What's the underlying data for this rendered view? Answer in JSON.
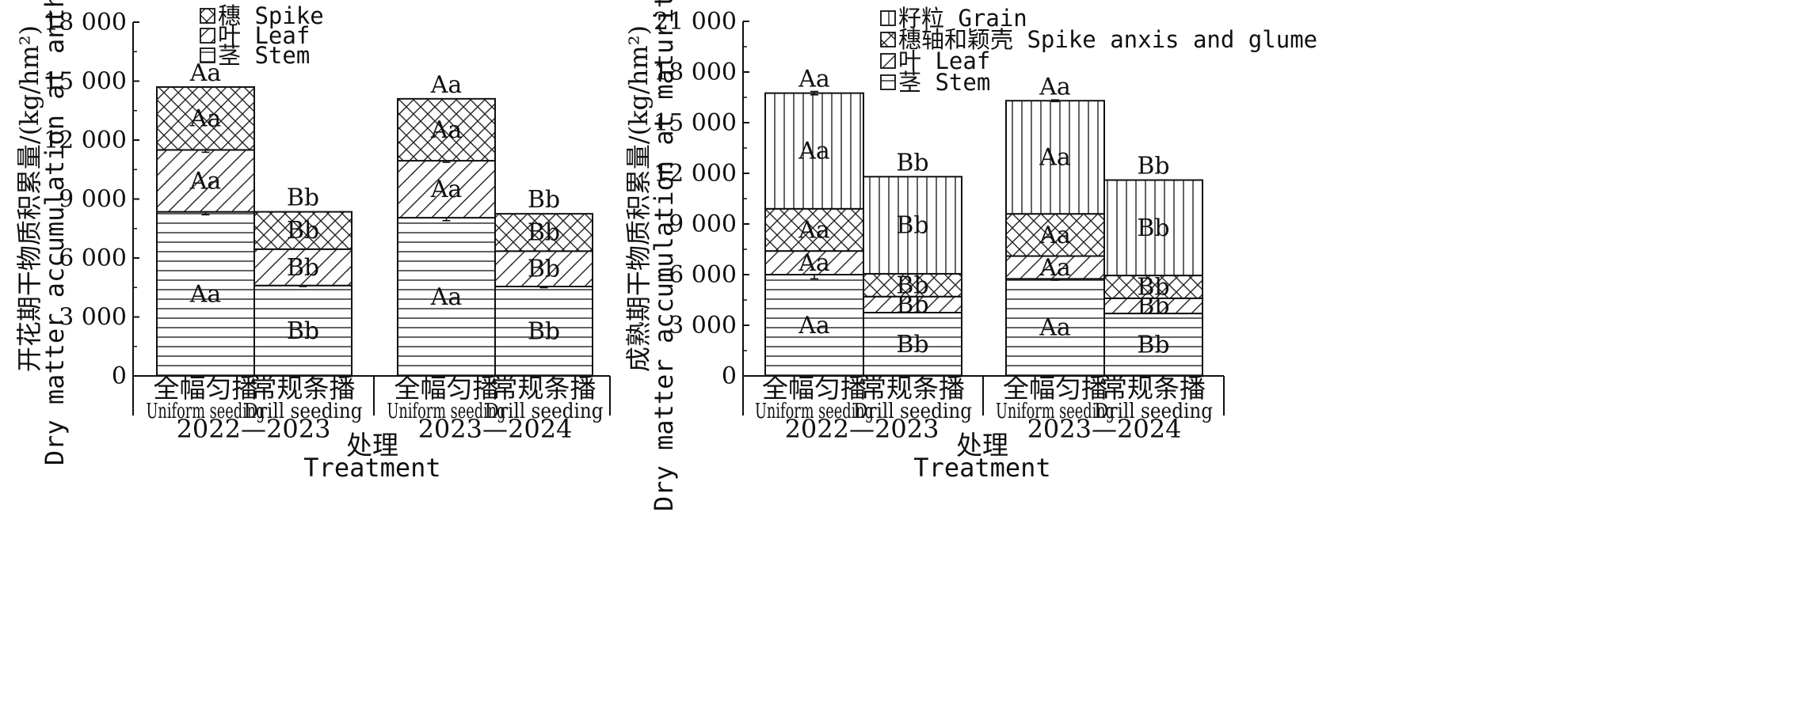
{
  "chart_data": [
    {
      "type": "bar",
      "stacked": true,
      "ylabel": "开花期干物质积累量/(kg/hm²)",
      "ylabel_en": "Dry matter accumulation at anthesis",
      "xlabel": "处理",
      "xlabel_en": "Treatment",
      "ylim": [
        0,
        18000
      ],
      "yticks": [
        0,
        3000,
        6000,
        9000,
        12000,
        15000,
        18000
      ],
      "ytick_labels": [
        "0",
        "3 000",
        "6 000",
        "9 000",
        "12 000",
        "15 000",
        "18 000"
      ],
      "legend_position": "top",
      "categories": [
        {
          "zh": "全幅匀播",
          "en": "Uniform seeding",
          "year": "2022—2023"
        },
        {
          "zh": "常规条播",
          "en": "Drill seeding",
          "year": "2022—2023"
        },
        {
          "zh": "全幅匀播",
          "en": "Uniform seeding",
          "year": "2023—2024"
        },
        {
          "zh": "常规条播",
          "en": "Drill seeding",
          "year": "2023—2024"
        }
      ],
      "years": [
        "2022—2023",
        "2023—2024"
      ],
      "series": [
        {
          "name": "茎 Stem",
          "pattern": "hlines",
          "values": [
            8350,
            4600,
            8050,
            4550
          ],
          "errors": [
            150,
            50,
            150,
            60
          ],
          "letters": [
            "Aa",
            "Bb",
            "Aa",
            "Bb"
          ]
        },
        {
          "name": "叶 Leaf",
          "pattern": "diag",
          "values": [
            3150,
            1850,
            2900,
            1800
          ],
          "errors": [
            120,
            0,
            80,
            0
          ],
          "letters": [
            "Aa",
            "Bb",
            "Aa",
            "Bb"
          ]
        },
        {
          "name": "穗 Spike",
          "pattern": "cross",
          "values": [
            3200,
            1900,
            3150,
            1900
          ],
          "errors": [
            0,
            0,
            0,
            0
          ],
          "letters": [
            "Aa",
            "Bb",
            "Aa",
            "Bb"
          ]
        }
      ],
      "total_letters": [
        "Aa",
        "Bb",
        "Aa",
        "Bb"
      ]
    },
    {
      "type": "bar",
      "stacked": true,
      "ylabel": "成熟期干物质积累量/(kg/hm²)",
      "ylabel_en": "Dry matter accumulation at maturity stage",
      "xlabel": "处理",
      "xlabel_en": "Treatment",
      "ylim": [
        0,
        21000
      ],
      "yticks": [
        0,
        3000,
        6000,
        9000,
        12000,
        15000,
        18000,
        21000
      ],
      "ytick_labels": [
        "0",
        "3 000",
        "6 000",
        "9 000",
        "12 000",
        "15 000",
        "18 000",
        "21 000"
      ],
      "legend_position": "top",
      "categories": [
        {
          "zh": "全幅匀播",
          "en": "Uniform seeding",
          "year": "2022—2023"
        },
        {
          "zh": "常规条播",
          "en": "Drill seeding",
          "year": "2022—2023"
        },
        {
          "zh": "全幅匀播",
          "en": "Uniform seeding",
          "year": "2023—2024"
        },
        {
          "zh": "常规条播",
          "en": "Drill seeding",
          "year": "2023—2024"
        }
      ],
      "years": [
        "2022—2023",
        "2023—2024"
      ],
      "series": [
        {
          "name": "茎 Stem",
          "pattern": "hlines",
          "values": [
            6000,
            3750,
            5750,
            3700
          ],
          "errors": [
            250,
            0,
            80,
            0
          ],
          "letters": [
            "Aa",
            "Bb",
            "Aa",
            "Bb"
          ]
        },
        {
          "name": "叶 Leaf",
          "pattern": "diag",
          "values": [
            1400,
            950,
            1350,
            900
          ],
          "errors": [
            0,
            0,
            0,
            0
          ],
          "letters": [
            "Aa",
            "Bb",
            "Aa",
            "Bb"
          ]
        },
        {
          "name": "穗轴和颖壳 Spike anxis and glume",
          "pattern": "cross",
          "values": [
            2500,
            1350,
            2500,
            1350
          ],
          "errors": [
            0,
            0,
            0,
            0
          ],
          "letters": [
            "Aa",
            "Bb",
            "Aa",
            "Bb"
          ]
        },
        {
          "name": "籽粒 Grain",
          "pattern": "vlines",
          "values": [
            6850,
            5750,
            6700,
            5650
          ],
          "errors": [
            100,
            0,
            50,
            0
          ],
          "letters": [
            "Aa",
            "Bb",
            "Aa",
            "Bb"
          ]
        }
      ],
      "total_letters": [
        "Aa",
        "Bb",
        "Aa",
        "Bb"
      ]
    }
  ]
}
